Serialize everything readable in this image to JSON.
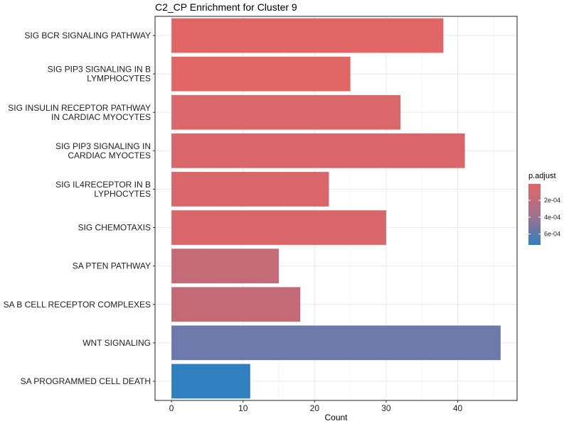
{
  "chart_data": {
    "type": "bar",
    "orientation": "horizontal",
    "title": "C2_CP Enrichment for Cluster 9",
    "xlabel": "Count",
    "ylabel": "",
    "xlim": [
      -2.3,
      48.3
    ],
    "xticks": [
      0,
      10,
      20,
      30,
      40
    ],
    "grid": true,
    "categories": [
      [
        "SIG BCR SIGNALING PATHWAY"
      ],
      [
        "SIG PIP3 SIGNALING IN B",
        "LYMPHOCYTES"
      ],
      [
        "SIG INSULIN RECEPTOR PATHWAY",
        "IN CARDIAC MYOCYTES"
      ],
      [
        "SIG PIP3 SIGNALING IN",
        "CARDIAC MYOCTES"
      ],
      [
        "SIG IL4RECEPTOR IN B",
        "LYPHOCYTES"
      ],
      [
        "SIG CHEMOTAXIS"
      ],
      [
        "SA PTEN PATHWAY"
      ],
      [
        "SA B CELL RECEPTOR COMPLEXES"
      ],
      [
        "WNT SIGNALING"
      ],
      [
        "SA PROGRAMMED CELL DEATH"
      ]
    ],
    "values": [
      38,
      25,
      32,
      41,
      22,
      30,
      15,
      18,
      46,
      11
    ],
    "p_adjust": [
      5e-06,
      1e-05,
      2.2e-05,
      2.6e-05,
      3e-05,
      3e-05,
      0.00018,
      0.0002,
      0.0005,
      0.00073
    ],
    "colors": [
      "#e06666",
      "#e06666",
      "#da6769",
      "#d96769",
      "#d9676a",
      "#d9676a",
      "#c46b76",
      "#c26b77",
      "#6d79ab",
      "#3080bf"
    ],
    "legend": {
      "title": "p.adjust",
      "position": "right",
      "color_low": "#e06666",
      "color_high": "#3080bf",
      "range": [
        5e-06,
        0.00073
      ],
      "ticks": [
        {
          "value": 0.0002,
          "label": "2e-04"
        },
        {
          "value": 0.0004,
          "label": "4e-04"
        },
        {
          "value": 0.0006,
          "label": "6e-04"
        }
      ]
    }
  }
}
